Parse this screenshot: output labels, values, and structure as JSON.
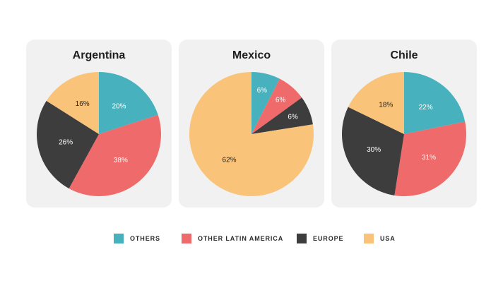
{
  "colors": {
    "others": "#47b2bd",
    "other_latin_america": "#ef6a6a",
    "europe": "#3d3d3d",
    "usa": "#f9c47a"
  },
  "legend": [
    {
      "label": "OTHERS",
      "color": "#47b2bd"
    },
    {
      "label": "OTHER LATIN AMERICA",
      "color": "#ef6a6a"
    },
    {
      "label": "EUROPE",
      "color": "#3d3d3d"
    },
    {
      "label": "USA",
      "color": "#f9c47a"
    }
  ],
  "chart_data": [
    {
      "type": "pie",
      "title": "Argentina",
      "slices": [
        {
          "category": "OTHERS",
          "value": 20,
          "label": "20%"
        },
        {
          "category": "OTHER LATIN AMERICA",
          "value": 38,
          "label": "38%"
        },
        {
          "category": "EUROPE",
          "value": 26,
          "label": "26%"
        },
        {
          "category": "USA",
          "value": 16,
          "label": "16%"
        }
      ]
    },
    {
      "type": "pie",
      "title": "Mexico",
      "slices": [
        {
          "category": "OTHERS",
          "value": 6,
          "label": "6%"
        },
        {
          "category": "OTHER LATIN AMERICA",
          "value": 6,
          "label": "6%"
        },
        {
          "category": "EUROPE",
          "value": 6,
          "label": "6%"
        },
        {
          "category": "USA",
          "value": 62,
          "label": "62%"
        }
      ]
    },
    {
      "type": "pie",
      "title": "Chile",
      "slices": [
        {
          "category": "OTHERS",
          "value": 22,
          "label": "22%"
        },
        {
          "category": "OTHER LATIN AMERICA",
          "value": 31,
          "label": "31%"
        },
        {
          "category": "EUROPE",
          "value": 30,
          "label": "30%"
        },
        {
          "category": "USA",
          "value": 18,
          "label": "18%"
        }
      ]
    }
  ]
}
